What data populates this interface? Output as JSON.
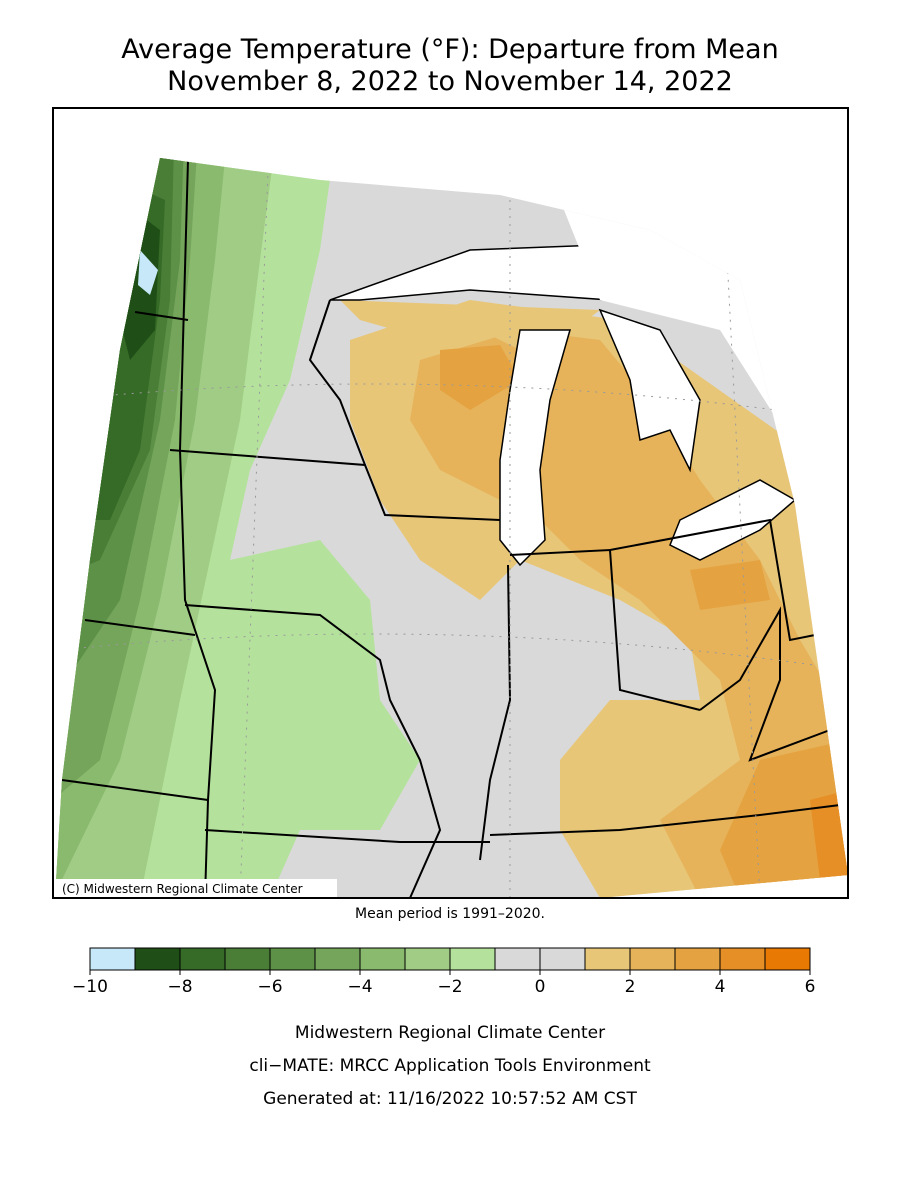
{
  "title": "Average Temperature (°F): Departure from Mean",
  "subtitle": "November 8, 2022 to November 14, 2022",
  "copyright": "(C) Midwestern Regional Climate Center",
  "note": "Mean period is 1991–2020.",
  "legend": {
    "bins": [
      -10,
      -9,
      -8,
      -7,
      -6,
      -5,
      -4,
      -3,
      -2,
      -1,
      0,
      1,
      2,
      3,
      4,
      5,
      6
    ],
    "colors": [
      "#c6e8f8",
      "#1f4f17",
      "#356b27",
      "#4a7e37",
      "#5e9148",
      "#74a55b",
      "#8aba6e",
      "#a0cc85",
      "#b4e29c",
      "#d9d9d9",
      "#d9d9d9",
      "#e8c677",
      "#e6b35a",
      "#e5a240",
      "#e68f26",
      "#e87a04"
    ],
    "ticks": [
      {
        "value": -10,
        "label": "−10"
      },
      {
        "value": -8,
        "label": "−8"
      },
      {
        "value": -6,
        "label": "−6"
      },
      {
        "value": -4,
        "label": "−4"
      },
      {
        "value": -2,
        "label": "−2"
      },
      0,
      2,
      4,
      6
    ]
  },
  "footer": [
    "Midwestern Regional Climate Center",
    "cli−MATE: MRCC Application Tools Environment",
    "Generated at: 11/16/2022 10:57:52 AM CST"
  ]
}
